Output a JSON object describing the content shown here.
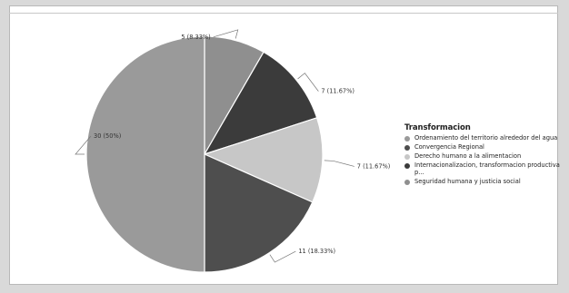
{
  "chart_data": {
    "type": "pie",
    "title": "",
    "legend": {
      "title": "Transformacion",
      "placement": "right"
    },
    "series": [
      {
        "name": "Ordenamiento del territorio alrededor del agua",
        "value": 30,
        "label": "30 (50%)",
        "color": "#9a9a9a"
      },
      {
        "name": "Convergencia Regional",
        "value": 11,
        "label": "11 (18.33%)",
        "color": "#4e4e4e"
      },
      {
        "name": "Derecho humano a la alimentacion",
        "value": 7,
        "label": "7 (11.67%)",
        "color": "#c7c7c7"
      },
      {
        "name": "Internacionalizacion, transformacion productiva p...",
        "value": 7,
        "label": "7 (11.67%)",
        "color": "#3b3b3b"
      },
      {
        "name": "Seguridad humana y justicia social",
        "value": 5,
        "label": "5 (8.33%)",
        "color": "#8f8f8f"
      }
    ],
    "grid": false
  }
}
